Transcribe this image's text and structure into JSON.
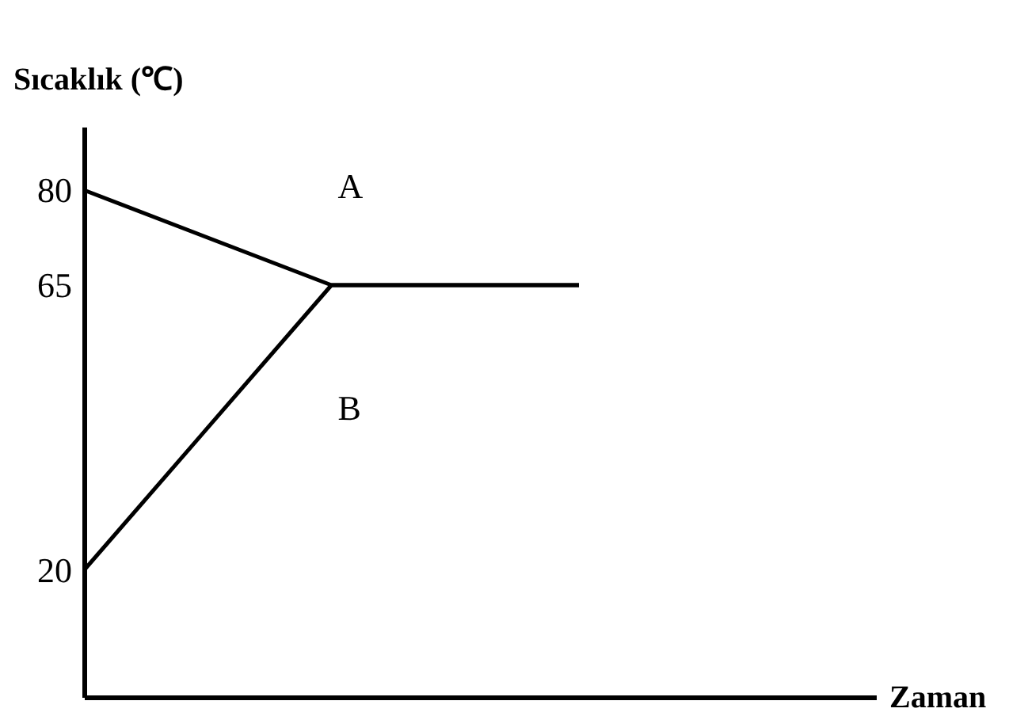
{
  "chart_data": {
    "type": "line",
    "xlabel": "Zaman",
    "ylabel": "Sıcaklık (℃)",
    "categories": [
      null,
      null,
      null
    ],
    "series": [
      {
        "name": "A",
        "color": "#000000",
        "values": [
          80,
          65,
          65
        ]
      },
      {
        "name": "B",
        "color": "#000000",
        "values": [
          20,
          65,
          65
        ]
      }
    ],
    "ylim": [
      0,
      90
    ],
    "yticks": [
      20,
      65,
      80
    ],
    "grid": false,
    "legend": false,
    "marker": "none",
    "line_style": "solid",
    "tick_labels": "y"
  }
}
